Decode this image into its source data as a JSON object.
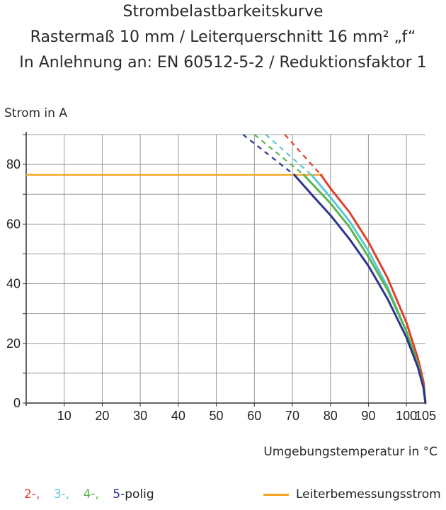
{
  "title_lines": [
    "Strombelastbarkeitskurve",
    "Rastermaß 10 mm / Leiterquerschnitt 16 mm² „f“",
    "In Anlehnung an: EN 60512-5-2 / Reduktionsfaktor 1"
  ],
  "ylabel": "Strom in A",
  "xlabel": "Umgebungstemperatur in °C",
  "legend": {
    "pole_items": [
      {
        "text": "2-,",
        "color": "#e0402a"
      },
      {
        "text": "3-,",
        "color": "#5bc8d8"
      },
      {
        "text": "4-,",
        "color": "#5ab54a"
      },
      {
        "text": "5-",
        "color": "#2c3590"
      }
    ],
    "pole_suffix": "polig",
    "current_label": "Leiterbemessungsstrom",
    "current_color": "#f5a623"
  },
  "chart_data": {
    "type": "line",
    "xlim": [
      0,
      105
    ],
    "ylim": [
      0,
      90
    ],
    "x_ticks": [
      10,
      20,
      30,
      40,
      50,
      60,
      70,
      80,
      90,
      100,
      105
    ],
    "y_ticks": [
      0,
      20,
      40,
      60,
      80
    ],
    "grid": true,
    "rated_current": {
      "value": 76.5,
      "x": [
        0,
        78
      ],
      "color": "#f5a623"
    },
    "series": [
      {
        "label": "2-",
        "color": "#e0402a",
        "dashed": {
          "x": [
            68,
            77.5
          ],
          "y": [
            90,
            76.5
          ]
        },
        "solid": {
          "x": [
            77.5,
            80,
            85,
            90,
            95,
            100,
            103,
            104.5,
            105
          ],
          "y": [
            76.5,
            72,
            64,
            54,
            42,
            27,
            15,
            7,
            0
          ]
        }
      },
      {
        "label": "3-",
        "color": "#5bc8d8",
        "dashed": {
          "x": [
            63,
            75
          ],
          "y": [
            90,
            76.5
          ]
        },
        "solid": {
          "x": [
            75,
            80,
            85,
            90,
            95,
            100,
            103,
            104.5,
            105
          ],
          "y": [
            76.5,
            69,
            61,
            51,
            39,
            24,
            13,
            5,
            0
          ]
        }
      },
      {
        "label": "4-",
        "color": "#5ab54a",
        "dashed": {
          "x": [
            60,
            73
          ],
          "y": [
            90,
            76.5
          ]
        },
        "solid": {
          "x": [
            73,
            80,
            85,
            90,
            95,
            100,
            103,
            104.5,
            105
          ],
          "y": [
            76.5,
            67,
            59,
            49,
            38,
            24,
            13,
            5,
            0
          ]
        }
      },
      {
        "label": "5-",
        "color": "#2c3590",
        "dashed": {
          "x": [
            57,
            70.5
          ],
          "y": [
            90,
            76.5
          ]
        },
        "solid": {
          "x": [
            70.5,
            75,
            80,
            85,
            90,
            95,
            100,
            103,
            104.5,
            105
          ],
          "y": [
            76.5,
            70,
            63,
            55,
            46,
            35,
            22,
            12,
            5,
            0
          ]
        }
      }
    ]
  }
}
